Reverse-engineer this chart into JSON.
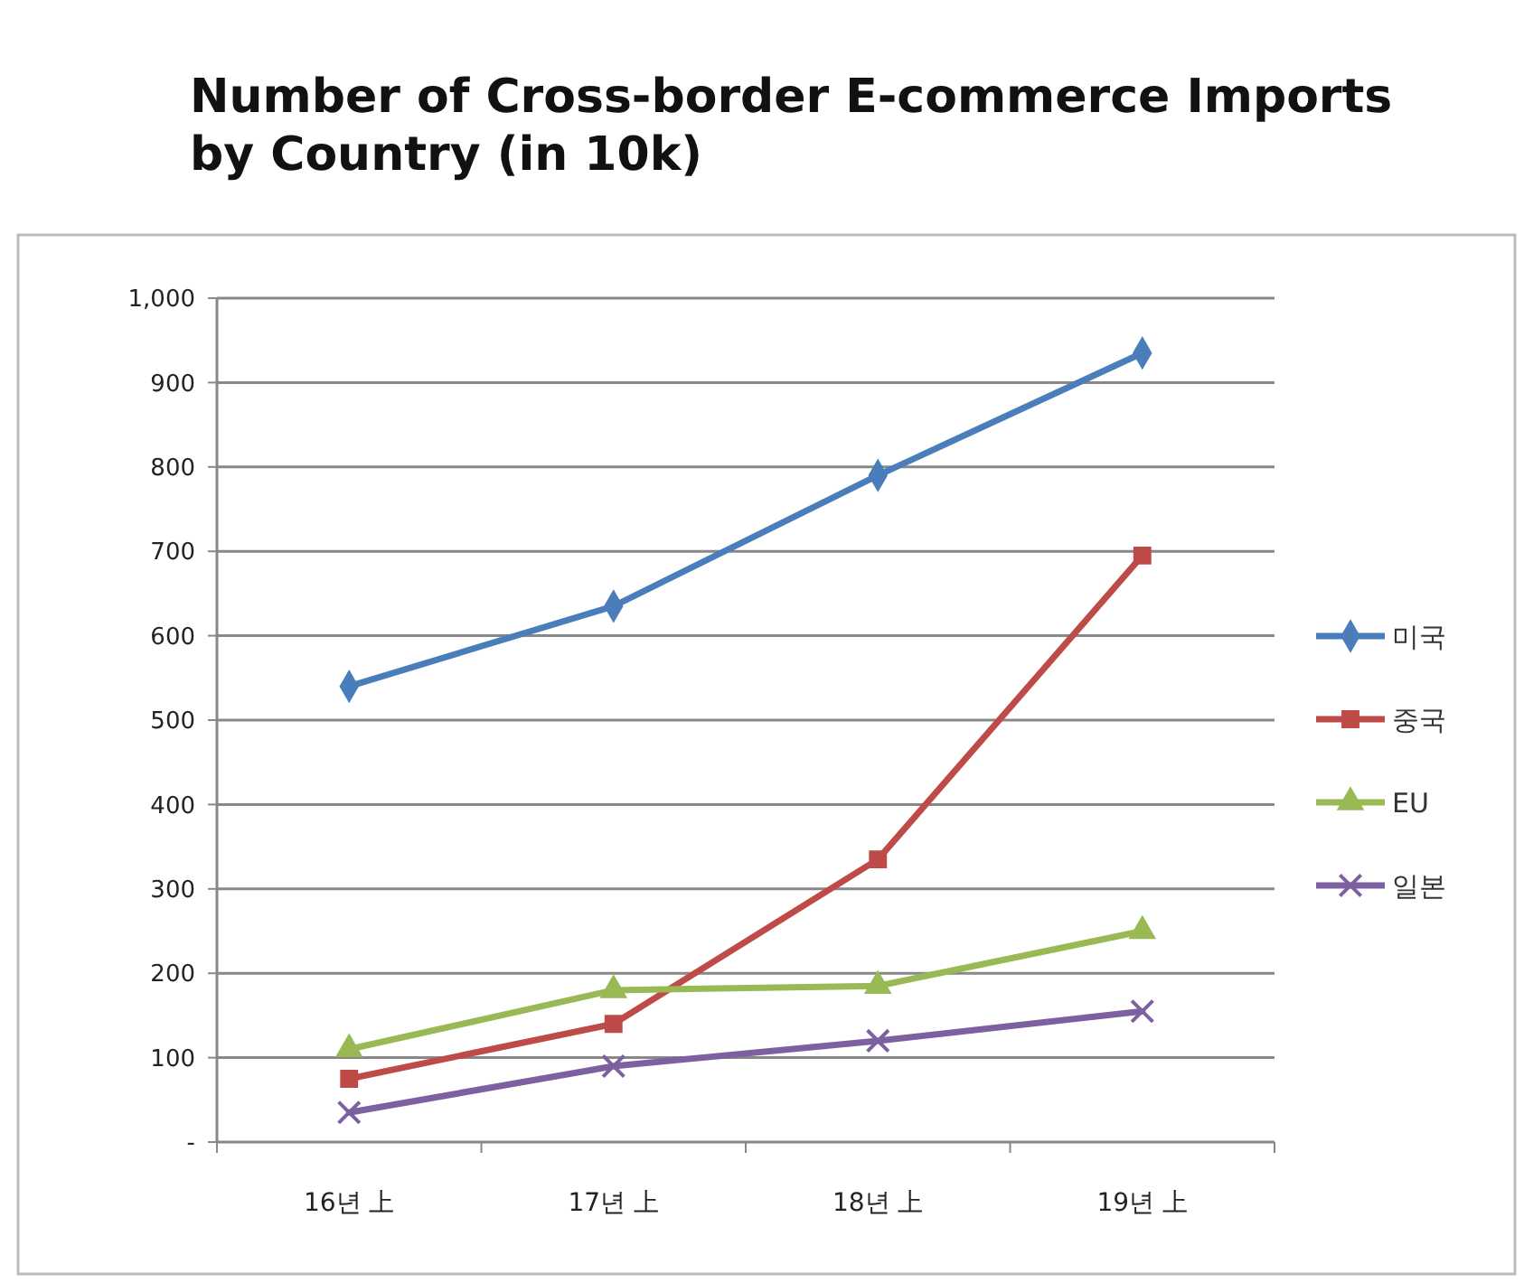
{
  "chart_data": {
    "type": "line",
    "title": "Number of Cross-border E-commerce Imports by Country (in 10k)",
    "categories": [
      "16년 上",
      "17년 上",
      "18년 上",
      "19년 上"
    ],
    "series": [
      {
        "name": "미국",
        "color": "#4a7ebb",
        "marker": "diamond",
        "values": [
          540,
          635,
          790,
          935
        ]
      },
      {
        "name": "중국",
        "color": "#be4b48",
        "marker": "square",
        "values": [
          75,
          140,
          335,
          695
        ]
      },
      {
        "name": "EU",
        "color": "#98b954",
        "marker": "triangle",
        "values": [
          110,
          180,
          185,
          250
        ]
      },
      {
        "name": "일본",
        "color": "#7d60a0",
        "marker": "cross",
        "values": [
          35,
          90,
          120,
          155
        ]
      }
    ],
    "ylim": [
      0,
      1000
    ],
    "yticks": [
      {
        "value": 0,
        "label": "-"
      },
      100,
      200,
      300,
      400,
      500,
      600,
      700,
      800,
      900,
      {
        "value": 1000,
        "label": "1,000"
      }
    ],
    "grid": "y",
    "legend": "right"
  }
}
